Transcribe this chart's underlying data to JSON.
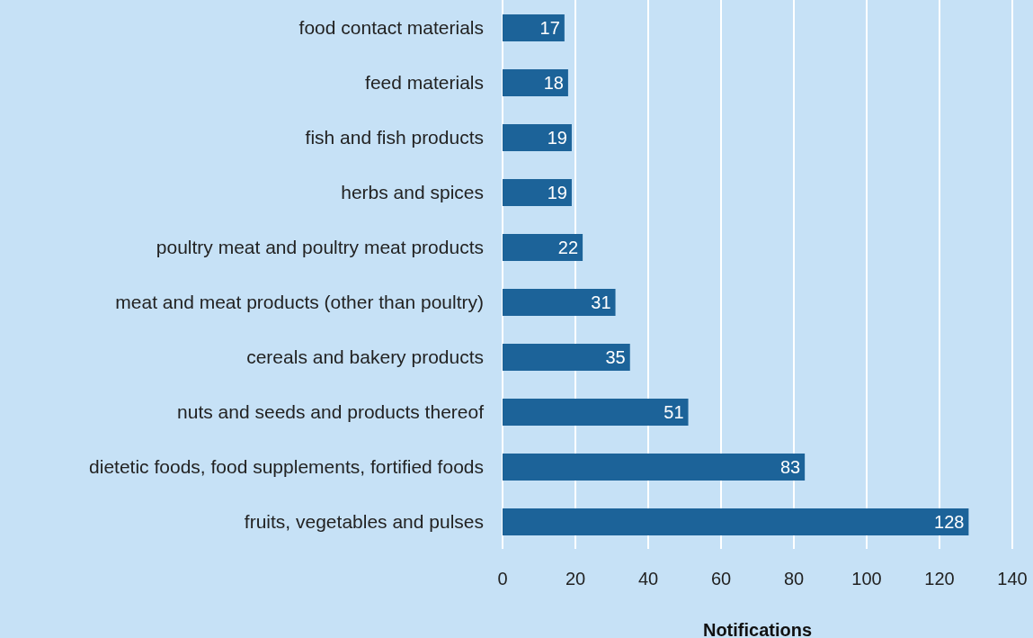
{
  "chart_data": {
    "type": "bar",
    "orientation": "horizontal",
    "xlabel": "Notifications",
    "categories": [
      "food contact materials",
      "feed materials",
      "fish and fish products",
      "herbs and spices",
      "poultry meat and poultry meat products",
      "meat and meat products (other than poultry)",
      "cereals and bakery products",
      "nuts and seeds and products thereof",
      "dietetic foods, food supplements, fortified foods",
      "fruits, vegetables and pulses"
    ],
    "values": [
      17,
      18,
      19,
      19,
      22,
      31,
      35,
      51,
      83,
      128
    ],
    "color": "#1c6399",
    "xlim": [
      0,
      140
    ],
    "xticks": [
      0,
      20,
      40,
      60,
      80,
      100,
      120,
      140
    ],
    "grid": "x",
    "data_labels": true
  }
}
